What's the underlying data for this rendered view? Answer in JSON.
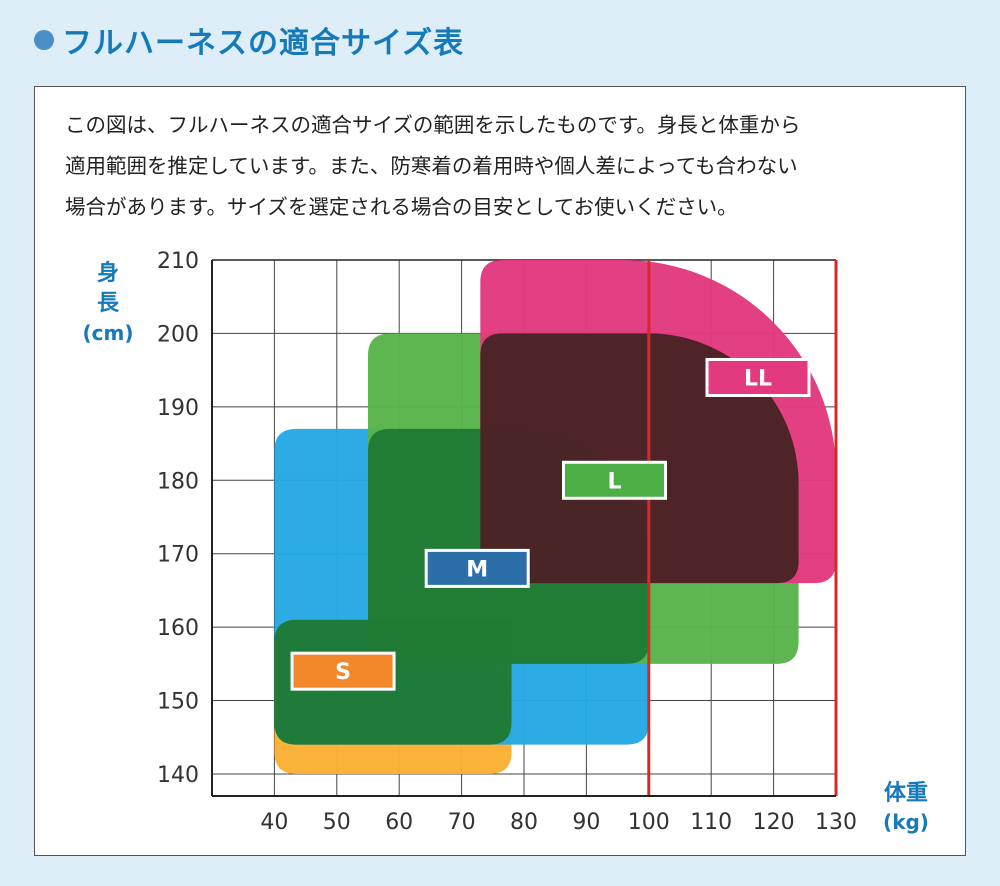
{
  "title": "フルハーネスの適合サイズ表",
  "colors": {
    "title": "#1679b8",
    "title_dot": "#4a90c8",
    "background": "#ddeef9",
    "size_S": "#fbb033",
    "size_M": "#25a8e3",
    "size_L": "#58b44a",
    "size_LL": "#e2397f",
    "overlap_SM": "#1f7a35",
    "overlap_ML": "#1f7a35",
    "overlap_L_LL": "#4a2325",
    "limit_line": "#d62b25",
    "label_S": "#f3882a",
    "label_M": "#2c6ea8",
    "label_L": "#4caf45",
    "label_LL": "#e2397f"
  },
  "description": [
    "この図は、フルハーネスの適合サイズの範囲を示したものです。身長と体重から",
    "適用範囲を推定しています。また、防寒着の着用時や個人差によっても合わない",
    "場合があります。サイズを選定される場合の目安としてお使いください。"
  ],
  "chart_data": {
    "type": "area",
    "ylabel_chars": [
      "身",
      "長"
    ],
    "ylabel_unit": "(cm)",
    "xlabel": "体重",
    "xlabel_unit": "(kg)",
    "xlim": [
      30,
      130
    ],
    "ylim": [
      137,
      210
    ],
    "x_ticks": [
      40,
      50,
      60,
      70,
      80,
      90,
      100,
      110,
      120,
      130
    ],
    "y_ticks": [
      140,
      150,
      160,
      170,
      180,
      190,
      200,
      210
    ],
    "grid": true,
    "vertical_lines": [
      100,
      130
    ],
    "series": [
      {
        "name": "S",
        "weight_range": [
          40,
          78
        ],
        "height_range": [
          140,
          161
        ]
      },
      {
        "name": "M",
        "weight_range": [
          40,
          100
        ],
        "height_range": [
          144,
          187
        ]
      },
      {
        "name": "L",
        "weight_range": [
          55,
          124
        ],
        "height_range": [
          155,
          200
        ]
      },
      {
        "name": "LL",
        "weight_range": [
          73,
          130
        ],
        "height_range": [
          166,
          210
        ]
      }
    ],
    "labels": [
      {
        "text": "S",
        "x": 51,
        "y": 154
      },
      {
        "text": "M",
        "x": 72.5,
        "y": 168
      },
      {
        "text": "L",
        "x": 94.5,
        "y": 180
      },
      {
        "text": "LL",
        "x": 117.5,
        "y": 194
      }
    ]
  }
}
